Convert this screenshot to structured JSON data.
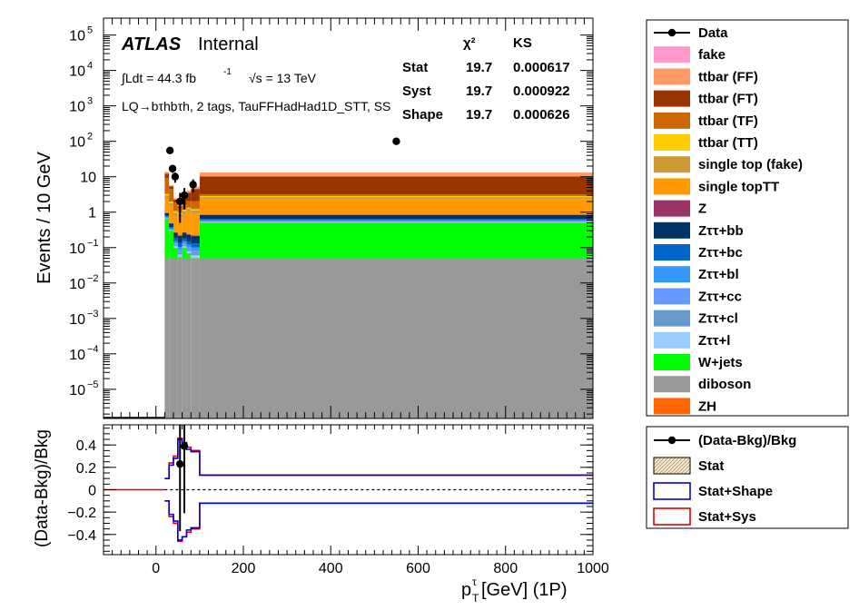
{
  "chart_data": [
    {
      "type": "stacked-step-histogram",
      "panel": "main",
      "ylabel": "Events / 10 GeV",
      "y_scale": "log",
      "ylim": [
        1.5e-06,
        300000.0
      ],
      "xlim": [
        -120,
        1000
      ],
      "y_ticks": [
        {
          "v": 100000.0,
          "b": "10",
          "e": "5"
        },
        {
          "v": 10000.0,
          "b": "10",
          "e": "4"
        },
        {
          "v": 1000.0,
          "b": "10",
          "e": "3"
        },
        {
          "v": 100.0,
          "b": "10",
          "e": "2"
        },
        {
          "v": 10,
          "b": "10",
          "e": ""
        },
        {
          "v": 1,
          "b": "1",
          "e": ""
        },
        {
          "v": 0.1,
          "b": "10",
          "e": "−1"
        },
        {
          "v": 0.01,
          "b": "10",
          "e": "−2"
        },
        {
          "v": 0.001,
          "b": "10",
          "e": "−3"
        },
        {
          "v": 0.0001,
          "b": "10",
          "e": "−4"
        },
        {
          "v": 1e-05,
          "b": "10",
          "e": "−5"
        }
      ],
      "atlas_label": "ATLAS",
      "atlas_status": "Internal",
      "lumi_text": "∫Ldt = 44.3 fb",
      "lumi_exp": "-1",
      "energy_text": "√s = 13 TeV",
      "region_text": "LQ→bτhbτh, 2 tags, TauFFHadHad1D_STT, SS",
      "stats_table": {
        "headers": [
          "χ²",
          "KS"
        ],
        "rows": [
          {
            "name": "Stat",
            "chi2": "19.7",
            "ks": "0.000617"
          },
          {
            "name": "Syst",
            "chi2": "19.7",
            "ks": "0.000922"
          },
          {
            "name": "Shape",
            "chi2": "19.7",
            "ks": "0.000626"
          }
        ]
      },
      "bin_edges": [
        20,
        30,
        40,
        50,
        60,
        70,
        80,
        100,
        1000
      ],
      "stack": [
        {
          "name": "diboson",
          "color": "#999999",
          "values": [
            0.05,
            0.05,
            0.05,
            0.05,
            0.05,
            0.05,
            0.05,
            0.05
          ]
        },
        {
          "name": "W+jets",
          "color": "#00ff00",
          "values": [
            0.6,
            0.25,
            0.05,
            0.004,
            0.05,
            0.02,
            0.001,
            0.45
          ]
        },
        {
          "name": "Zττ+l",
          "color": "#99ccff",
          "values": [
            0.02,
            0.01,
            0.01,
            0.01,
            0.01,
            0.01,
            0.01,
            0.02
          ]
        },
        {
          "name": "Zττ+cl",
          "color": "#6699cc",
          "values": [
            0.02,
            0.01,
            0.01,
            0.01,
            0.01,
            0.01,
            0.01,
            0.02
          ]
        },
        {
          "name": "Zττ+cc",
          "color": "#6699ff",
          "values": [
            0.02,
            0.01,
            0.01,
            0.01,
            0.01,
            0.01,
            0.01,
            0.02
          ]
        },
        {
          "name": "Zττ+bl",
          "color": "#3399ff",
          "values": [
            0.03,
            0.02,
            0.02,
            0.02,
            0.02,
            0.02,
            0.02,
            0.03
          ]
        },
        {
          "name": "Zττ+bc",
          "color": "#0066cc",
          "values": [
            0.05,
            0.03,
            0.03,
            0.03,
            0.03,
            0.03,
            0.03,
            0.05
          ]
        },
        {
          "name": "Zττ+bb",
          "color": "#003366",
          "values": [
            0.15,
            0.1,
            0.08,
            0.08,
            0.08,
            0.08,
            0.08,
            0.2
          ]
        },
        {
          "name": "Z",
          "color": "#993366",
          "values": [
            0.02,
            0.01,
            0.01,
            0.01,
            0.01,
            0.01,
            0.01,
            0.02
          ]
        },
        {
          "name": "single topTT",
          "color": "#ff9900",
          "values": [
            1.5,
            1.0,
            0.5,
            0.5,
            0.6,
            0.8,
            0.7,
            1.5
          ]
        },
        {
          "name": "single top (fake)",
          "color": "#cc9933",
          "values": [
            0.5,
            0.3,
            0.2,
            0.15,
            0.2,
            0.2,
            0.2,
            0.3
          ]
        },
        {
          "name": "ttbar (TT)",
          "color": "#ffcc00",
          "values": [
            0.3,
            0.2,
            0.1,
            0.1,
            0.1,
            0.1,
            0.1,
            0.2
          ]
        },
        {
          "name": "ttbar (TF)",
          "color": "#cc6600",
          "values": [
            6.0,
            2.5,
            0.8,
            0.3,
            0.5,
            0.7,
            0.8,
            0.3
          ]
        },
        {
          "name": "ttbar (FT)",
          "color": "#993300",
          "values": [
            3.0,
            0.9,
            0.4,
            0.2,
            1.0,
            1.5,
            2.5,
            7.0
          ]
        },
        {
          "name": "ttbar (FF)",
          "color": "#ff9966",
          "values": [
            1.5,
            0.3,
            0.2,
            0.1,
            0.3,
            0.5,
            0.8,
            3.0
          ]
        },
        {
          "name": "fake",
          "color": "#ff99cc",
          "values": [
            0,
            0,
            0,
            0,
            0,
            0,
            0,
            0
          ]
        },
        {
          "name": "ZH",
          "color": "#ff6600",
          "values": [
            0,
            0,
            0,
            0,
            0,
            0,
            0,
            0
          ]
        }
      ],
      "data_points": [
        {
          "x": 32,
          "y": 55,
          "err": 7.4
        },
        {
          "x": 38,
          "y": 17,
          "err": 4.1
        },
        {
          "x": 44,
          "y": 10,
          "err": 3.2
        },
        {
          "x": 55,
          "y": 2.0,
          "err": 1.5
        },
        {
          "x": 65,
          "y": 3.0,
          "err": 1.8
        },
        {
          "x": 85,
          "y": 6.0,
          "err": 2.4
        },
        {
          "x": 550,
          "y": 100,
          "err": 10
        }
      ],
      "legend": {
        "placement": "right",
        "entries": [
          "Data",
          "fake",
          "ttbar (FF)",
          "ttbar (FT)",
          "ttbar (TF)",
          "ttbar (TT)",
          "single top (fake)",
          "single topTT",
          "Z",
          "Zττ+bb",
          "Zττ+bc",
          "Zττ+bl",
          "Zττ+cc",
          "Zττ+cl",
          "Zττ+l",
          "W+jets",
          "diboson",
          "ZH"
        ]
      }
    },
    {
      "type": "ratio-step",
      "panel": "ratio",
      "ylabel": "(Data-Bkg)/Bkg",
      "xlabel_main": "p",
      "xlabel_sub": "T",
      "xlabel_sup": "τ",
      "xlabel_rest": " [GeV] (1P)",
      "ylim": [
        -0.58,
        0.58
      ],
      "xlim": [
        -120,
        1000
      ],
      "x_ticks": [
        "0",
        "200",
        "400",
        "600",
        "800",
        "1000"
      ],
      "y_ticks": [
        "0.4",
        "0.2",
        "0",
        "−0.2",
        "−0.4"
      ],
      "bin_edges": [
        20,
        30,
        40,
        50,
        60,
        70,
        80,
        100,
        1000
      ],
      "stat_shape_up": [
        0.1,
        0.22,
        0.28,
        0.45,
        0.42,
        0.36,
        0.34,
        0.13
      ],
      "stat_shape_down": [
        -0.1,
        -0.22,
        -0.28,
        -0.45,
        -0.42,
        -0.36,
        -0.34,
        -0.12
      ],
      "stat_sys_up": [
        0.1,
        0.24,
        0.3,
        0.46,
        0.42,
        0.38,
        0.35,
        0.13
      ],
      "stat_sys_down": [
        -0.1,
        -0.24,
        -0.3,
        -0.46,
        -0.42,
        -0.38,
        -0.35,
        -0.12
      ],
      "ratio_points": [
        {
          "x": 55,
          "y": 0.23,
          "err": 0.6
        },
        {
          "x": 65,
          "y": 0.39,
          "err": 0.6
        }
      ],
      "legend": {
        "placement": "right",
        "entries": [
          {
            "name": "(Data-Bkg)/Bkg",
            "style": "marker"
          },
          {
            "name": "Stat",
            "style": "hatch"
          },
          {
            "name": "Stat+Shape",
            "style": "blue-box"
          },
          {
            "name": "Stat+Sys",
            "style": "red-box"
          }
        ]
      }
    }
  ]
}
